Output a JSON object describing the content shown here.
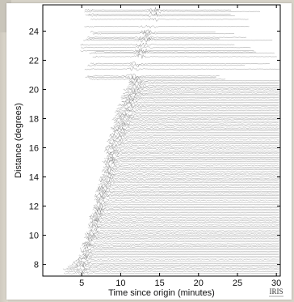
{
  "chart_data": {
    "type": "line",
    "title": "",
    "xlabel": "Time since origin (minutes)",
    "ylabel": "Distance (degrees)",
    "xlim": [
      0,
      30.5
    ],
    "ylim": [
      7.2,
      25.8
    ],
    "x_ticks": [
      5,
      10,
      15,
      20,
      25,
      30
    ],
    "y_ticks": [
      8,
      10,
      12,
      14,
      16,
      18,
      20,
      22,
      24
    ],
    "grid": false,
    "legend": "none",
    "trace_color": "#777777",
    "trace_distance_range": [
      7.4,
      25.5
    ],
    "first_arrival_curve": {
      "distance": [
        7.6,
        8.5,
        10,
        12,
        14,
        16,
        18,
        20,
        20.6
      ],
      "time_min": [
        2.6,
        4.8,
        5.6,
        6.6,
        7.5,
        8.3,
        9.2,
        10.6,
        11.2
      ]
    },
    "high_amplitude_arrivals": {
      "distance": [
        8,
        9,
        10,
        12,
        14,
        16,
        18,
        19.4,
        20.2,
        21,
        22.3,
        23.5,
        24.5,
        25.2
      ],
      "time_min": [
        5,
        5.2,
        6,
        7.2,
        8.2,
        9.2,
        10.5,
        11.5,
        12.2,
        11.5,
        12.5,
        13.2,
        13.8,
        14.5
      ]
    }
  },
  "logo": {
    "text": "IRIS"
  }
}
